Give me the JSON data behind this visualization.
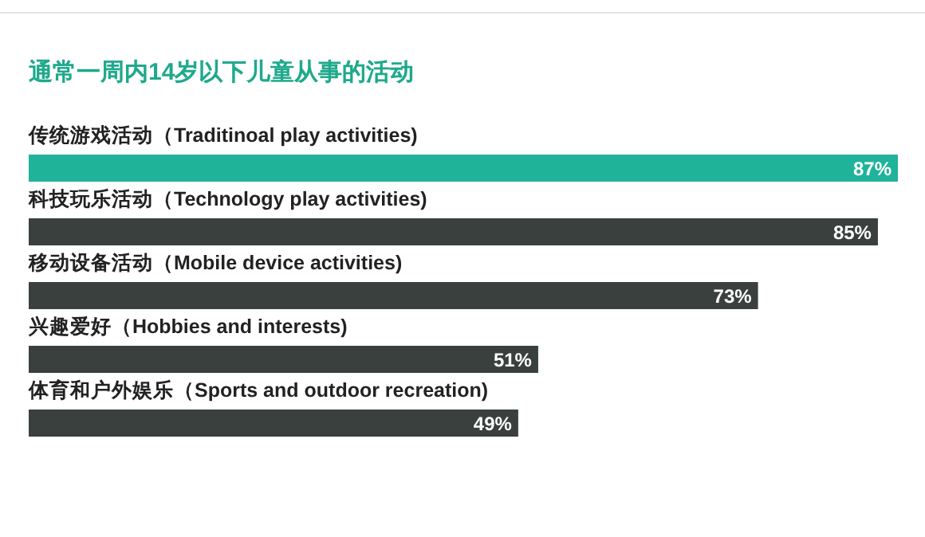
{
  "chart_data": {
    "type": "bar",
    "orientation": "horizontal",
    "title": "通常一周内14岁以下儿童从事的活动",
    "categories": [
      "传统游戏活动（Traditinoal play activities)",
      "科技玩乐活动（Technology play activities)",
      "移动设备活动（Mobile device activities)",
      "兴趣爱好（Hobbies and interests)",
      "体育和户外娱乐（Sports and outdoor recreation)"
    ],
    "values": [
      87,
      85,
      73,
      51,
      49
    ],
    "value_labels": [
      "87%",
      "85%",
      "73%",
      "51%",
      "49%"
    ],
    "colors": [
      "#1fb39a",
      "#3a403d",
      "#3a403d",
      "#3a403d",
      "#3a403d"
    ]
  }
}
